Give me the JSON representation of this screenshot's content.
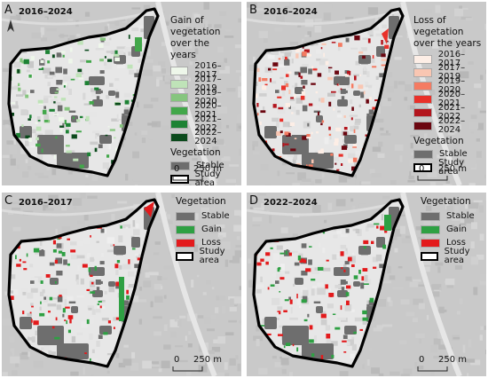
{
  "panels": [
    {
      "label": "A",
      "title": "2016–2024",
      "legend": {
        "heading": "Gain of vegetation over the years",
        "items": [
          {
            "label": "2016–2017",
            "color": "#eef7ea"
          },
          {
            "label": "2017–2019",
            "color": "#bfe3b8"
          },
          {
            "label": "2019–2020",
            "color": "#86c57e"
          },
          {
            "label": "2020–2021",
            "color": "#42a74a"
          },
          {
            "label": "2021–2022",
            "color": "#1d8234"
          },
          {
            "label": "2022–2024",
            "color": "#0b4a1c"
          }
        ],
        "sub_heading": "Vegetation",
        "stable_label": "Stable",
        "study_label": "Study area"
      },
      "scale": {
        "zero": "0",
        "dist": "250 m"
      },
      "has_north": true
    },
    {
      "label": "B",
      "title": "2016–2024",
      "legend": {
        "heading": "Loss of vegetation over the years",
        "items": [
          {
            "label": "2016–2017",
            "color": "#fdeee6"
          },
          {
            "label": "2017–2019",
            "color": "#f9c6b2"
          },
          {
            "label": "2019–2020",
            "color": "#f47b62"
          },
          {
            "label": "2020–2021",
            "color": "#e8312a"
          },
          {
            "label": "2021–2022",
            "color": "#b3151d"
          },
          {
            "label": "2022–2024",
            "color": "#6b0610"
          }
        ],
        "sub_heading": "Vegetation",
        "stable_label": "Stable",
        "study_label": "Study area"
      },
      "scale": {
        "zero": "0",
        "dist": "250 m"
      },
      "has_north": false
    },
    {
      "label": "C",
      "title": "2016–2017",
      "legend": {
        "heading": "Vegetation",
        "items": [
          {
            "label": "Stable",
            "color": "#6e6e6e"
          },
          {
            "label": "Gain",
            "color": "#2ea043"
          },
          {
            "label": "Loss",
            "color": "#e31a1c"
          }
        ],
        "study_label": "Study area"
      },
      "scale": {
        "zero": "0",
        "dist": "250 m"
      },
      "has_north": false
    },
    {
      "label": "D",
      "title": "2022–2024",
      "legend": {
        "heading": "Vegetation",
        "items": [
          {
            "label": "Stable",
            "color": "#6e6e6e"
          },
          {
            "label": "Gain",
            "color": "#2ea043"
          },
          {
            "label": "Loss",
            "color": "#e31a1c"
          }
        ],
        "study_label": "Study area"
      },
      "scale": {
        "zero": "0",
        "dist": "250 m"
      },
      "has_north": false
    }
  ],
  "colors": {
    "background_map": "#c9c9c9",
    "study_fill": "#e7e7e7",
    "stable": "#6e6e6e",
    "boundary": "#000000"
  }
}
